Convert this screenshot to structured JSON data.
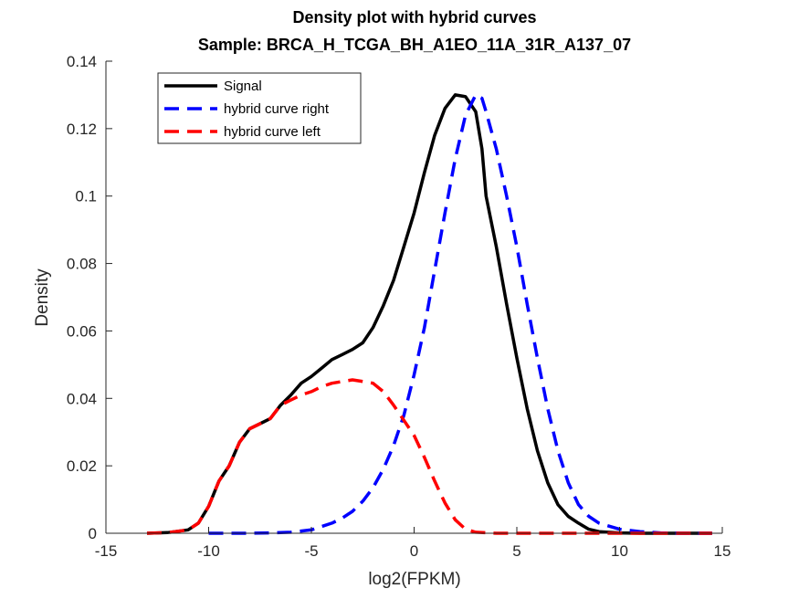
{
  "chart_data": {
    "type": "line",
    "title": "Density plot with hybrid curves",
    "subtitle": "Sample: BRCA_H_TCGA_BH_A1EO_11A_31R_A137_07",
    "xlabel": "log2(FPKM)",
    "ylabel": "Density",
    "xlim": [
      -15,
      15
    ],
    "ylim": [
      0,
      0.14
    ],
    "xticks": [
      -15,
      -10,
      -5,
      0,
      5,
      10,
      15
    ],
    "xtick_labels": [
      "-15",
      "-10",
      "-5",
      "0",
      "5",
      "10",
      "15"
    ],
    "yticks": [
      0,
      0.02,
      0.04,
      0.06,
      0.08,
      0.1,
      0.12,
      0.14
    ],
    "ytick_labels": [
      "0",
      "0.02",
      "0.04",
      "0.06",
      "0.08",
      "0.1",
      "0.12",
      "0.14"
    ],
    "grid": false,
    "legend_position": "top-left",
    "series": [
      {
        "name": "Signal",
        "color": "#000000",
        "style": "solid",
        "x": [
          -13,
          -12,
          -11,
          -10.5,
          -10,
          -9.5,
          -9,
          -8.5,
          -8,
          -7.5,
          -7,
          -6.5,
          -6,
          -5.5,
          -5,
          -4.5,
          -4,
          -3.5,
          -3,
          -2.5,
          -2,
          -1.5,
          -1,
          -0.5,
          0,
          0.5,
          1,
          1.5,
          2,
          2.5,
          3,
          3.3,
          3.5,
          4,
          4.5,
          5,
          5.5,
          6,
          6.5,
          7,
          7.5,
          8,
          8.5,
          9,
          10,
          11,
          12,
          13,
          14.5
        ],
        "y": [
          0,
          0.0002,
          0.001,
          0.003,
          0.008,
          0.0155,
          0.02,
          0.027,
          0.031,
          0.0325,
          0.034,
          0.038,
          0.041,
          0.0445,
          0.0465,
          0.049,
          0.0515,
          0.053,
          0.0545,
          0.0565,
          0.061,
          0.0675,
          0.075,
          0.085,
          0.095,
          0.107,
          0.118,
          0.126,
          0.13,
          0.1295,
          0.125,
          0.114,
          0.1,
          0.085,
          0.068,
          0.052,
          0.037,
          0.0245,
          0.015,
          0.0085,
          0.005,
          0.003,
          0.0012,
          0.0005,
          0.0001,
          0,
          0,
          0,
          0
        ]
      },
      {
        "name": "hybrid curve right",
        "color": "#0000ff",
        "style": "dashed",
        "x": [
          -10,
          -9,
          -8,
          -7,
          -6,
          -5,
          -4,
          -3.5,
          -3,
          -2.5,
          -2,
          -1.5,
          -1,
          -0.5,
          0,
          0.5,
          1,
          1.5,
          2,
          2.5,
          3,
          3.3,
          3.5,
          4,
          4.5,
          5,
          5.5,
          6,
          6.5,
          7,
          7.5,
          8,
          8.5,
          9,
          10,
          11,
          12,
          13,
          14.5
        ],
        "y": [
          0,
          0,
          0,
          0.0001,
          0.0003,
          0.001,
          0.003,
          0.0045,
          0.0065,
          0.0095,
          0.0135,
          0.019,
          0.026,
          0.035,
          0.047,
          0.061,
          0.078,
          0.095,
          0.111,
          0.124,
          0.13,
          0.129,
          0.125,
          0.114,
          0.1,
          0.085,
          0.068,
          0.052,
          0.037,
          0.0245,
          0.015,
          0.0085,
          0.005,
          0.003,
          0.0012,
          0.0005,
          0.0001,
          0,
          0
        ]
      },
      {
        "name": "hybrid curve left",
        "color": "#ff0000",
        "style": "dashed",
        "x": [
          -13,
          -12,
          -11,
          -10.5,
          -10,
          -9.5,
          -9,
          -8.5,
          -8,
          -7.5,
          -7,
          -6.5,
          -6,
          -5.5,
          -5,
          -4.5,
          -4,
          -3.5,
          -3,
          -2.5,
          -2,
          -1.5,
          -1,
          -0.5,
          0,
          0.5,
          1,
          1.5,
          2,
          2.5,
          3,
          4,
          5,
          6,
          8,
          10,
          12,
          14.5
        ],
        "y": [
          0,
          0.0002,
          0.001,
          0.003,
          0.008,
          0.0155,
          0.02,
          0.027,
          0.031,
          0.0325,
          0.034,
          0.038,
          0.0395,
          0.041,
          0.042,
          0.0435,
          0.0445,
          0.045,
          0.0455,
          0.045,
          0.0445,
          0.042,
          0.038,
          0.0335,
          0.029,
          0.0225,
          0.0155,
          0.009,
          0.004,
          0.0012,
          0.0003,
          0,
          0,
          0,
          0,
          0,
          0,
          0
        ]
      }
    ]
  }
}
